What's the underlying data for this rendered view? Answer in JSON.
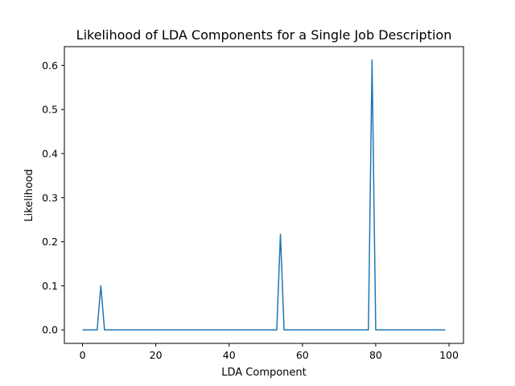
{
  "chart_data": {
    "type": "line",
    "title": "Likelihood of LDA Components for a Single Job Description",
    "xlabel": "LDA Component",
    "ylabel": "Likelihood",
    "xlim": [
      -4.95,
      103.95
    ],
    "ylim": [
      -0.0306,
      0.6426
    ],
    "xticks": [
      0,
      20,
      40,
      60,
      80,
      100
    ],
    "yticks": [
      0.0,
      0.1,
      0.2,
      0.3,
      0.4,
      0.5,
      0.6
    ],
    "xtick_labels": [
      "0",
      "20",
      "40",
      "60",
      "80",
      "100"
    ],
    "ytick_labels": [
      "0.0",
      "0.1",
      "0.2",
      "0.3",
      "0.4",
      "0.5",
      "0.6"
    ],
    "grid": false,
    "line_color": "#1f77b4",
    "x_start": 0,
    "x_end": 99,
    "baseline": 0.0,
    "peaks": [
      {
        "x": 5,
        "y": 0.1
      },
      {
        "x": 54,
        "y": 0.217
      },
      {
        "x": 79,
        "y": 0.612
      }
    ]
  }
}
